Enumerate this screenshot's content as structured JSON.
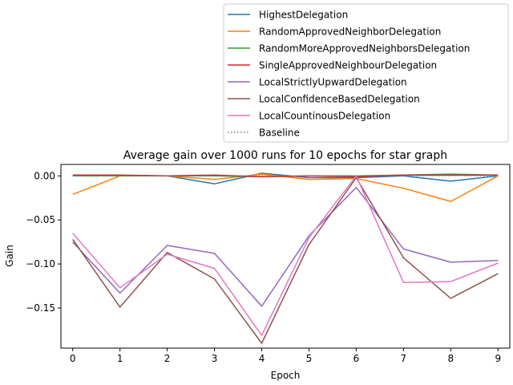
{
  "chart_data": {
    "type": "line",
    "title": "Average gain over 1000 runs for 10 epochs for star graph",
    "xlabel": "Epoch",
    "ylabel": "Gain",
    "x": [
      0,
      1,
      2,
      3,
      4,
      5,
      6,
      7,
      8,
      9
    ],
    "xlim": [
      -0.25,
      9.25
    ],
    "ylim": [
      -0.1955,
      0.013
    ],
    "x_ticks": [
      "0",
      "1",
      "2",
      "3",
      "4",
      "5",
      "6",
      "7",
      "8",
      "9"
    ],
    "y_ticks": [
      {
        "value": 0.0,
        "label": "0.00"
      },
      {
        "value": -0.05,
        "label": "−0.05"
      },
      {
        "value": -0.1,
        "label": "−0.10"
      },
      {
        "value": -0.15,
        "label": "−0.15"
      }
    ],
    "grid": false,
    "legend_position": "top-right, above plot",
    "series": [
      {
        "name": "HighestDelegation",
        "color": "#1f77b4",
        "style": "solid",
        "values": [
          0.0,
          0.0,
          0.0,
          -0.009,
          0.003,
          -0.002,
          -0.002,
          0.0,
          -0.006,
          0.0
        ]
      },
      {
        "name": "RandomApprovedNeighborDelegation",
        "color": "#ff7f0e",
        "style": "solid",
        "values": [
          -0.021,
          0.0,
          0.0,
          -0.004,
          0.002,
          -0.004,
          -0.003,
          -0.014,
          -0.029,
          0.0
        ]
      },
      {
        "name": "RandomMoreApprovedNeighborsDelegation",
        "color": "#2ca02c",
        "style": "solid",
        "values": [
          0.0,
          0.0,
          0.0,
          0.0,
          -0.001,
          0.0,
          0.0,
          0.001,
          0.002,
          0.001
        ]
      },
      {
        "name": "SingleApprovedNeighbourDelegation",
        "color": "#d62728",
        "style": "solid",
        "values": [
          0.001,
          0.001,
          0.0,
          0.001,
          -0.001,
          0.0,
          -0.001,
          0.001,
          0.001,
          0.001
        ]
      },
      {
        "name": "LocalStrictlyUpwardDelegation",
        "color": "#9467bd",
        "style": "solid",
        "values": [
          -0.075,
          -0.133,
          -0.079,
          -0.088,
          -0.148,
          -0.068,
          -0.013,
          -0.083,
          -0.098,
          -0.096
        ]
      },
      {
        "name": "LocalConfidenceBasedDelegation",
        "color": "#8c564b",
        "style": "solid",
        "values": [
          -0.072,
          -0.149,
          -0.087,
          -0.117,
          -0.19,
          -0.078,
          -0.002,
          -0.093,
          -0.139,
          -0.111
        ]
      },
      {
        "name": "LocalCountinousDelegation",
        "color": "#e377c2",
        "style": "solid",
        "values": [
          -0.065,
          -0.127,
          -0.089,
          -0.105,
          -0.181,
          -0.07,
          0.0,
          -0.121,
          -0.12,
          -0.099
        ]
      },
      {
        "name": "Baseline",
        "color": "#7f7f7f",
        "style": "dotted",
        "values": [
          0,
          0,
          0,
          0,
          0,
          0,
          0,
          0,
          0,
          0
        ]
      }
    ]
  }
}
